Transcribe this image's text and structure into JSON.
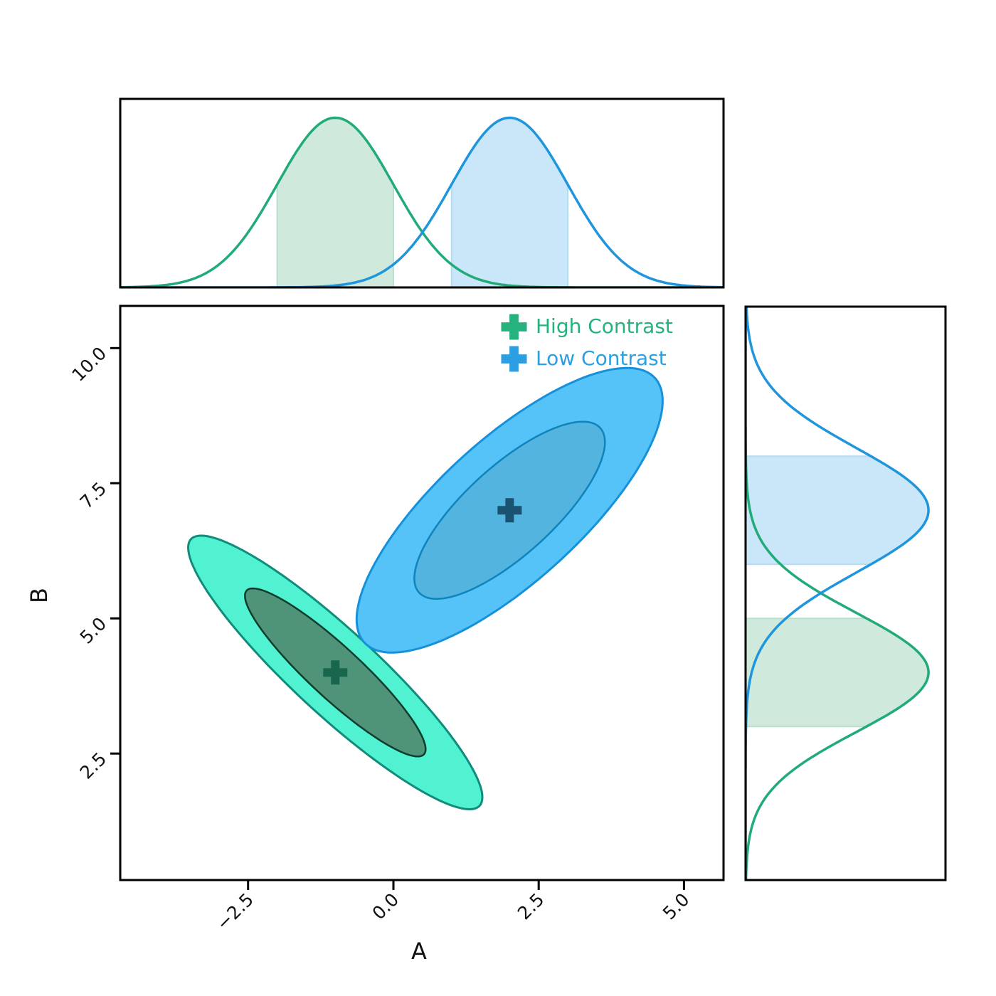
{
  "figure": {
    "background": "#ffffff",
    "spine_color": "#000000"
  },
  "axes": {
    "xlabel": "A",
    "ylabel": "B",
    "xlim": [
      -4.7,
      5.68
    ],
    "ylim": [
      0.16,
      10.78
    ],
    "x_ticks": [
      {
        "value": -2.5,
        "label": "−2.5"
      },
      {
        "value": 0.0,
        "label": "0.0"
      },
      {
        "value": 2.5,
        "label": "2.5"
      },
      {
        "value": 5.0,
        "label": "5.0"
      }
    ],
    "y_ticks": [
      {
        "value": 2.5,
        "label": "2.5"
      },
      {
        "value": 5.0,
        "label": "5.0"
      },
      {
        "value": 7.5,
        "label": "7.5"
      },
      {
        "value": 10.0,
        "label": "10.0"
      }
    ],
    "tick_rotation_deg": 45
  },
  "legend": {
    "items": [
      {
        "label": "High Contrast",
        "color": "#25B27D",
        "marker": "plus-icon"
      },
      {
        "label": "Low Contrast",
        "color": "#2B9FE1",
        "marker": "plus-icon"
      }
    ]
  },
  "chart_data": {
    "type": "area",
    "variant": "joint-kde-with-contour-ellipses-and-marginals",
    "title": "",
    "xlabel": "A",
    "ylabel": "B",
    "xlim": [
      -4.7,
      5.68
    ],
    "ylim": [
      0.16,
      10.78
    ],
    "legend_position": "upper right of main panel",
    "marginal_peak_fraction": {
      "top": 0.9,
      "right": 0.915
    },
    "groups": [
      {
        "name": "High Contrast",
        "center": {
          "A": -1.0,
          "B": 4.0
        },
        "marginal_A": {
          "mean": -1.0,
          "sd": 1.0,
          "shaded_interval": [
            -2.0,
            0.0
          ]
        },
        "marginal_B": {
          "mean": 4.0,
          "sd": 1.1,
          "shaded_interval": [
            3.0,
            5.0
          ]
        },
        "contours": {
          "outer": {
            "semi_major": 3.5,
            "semi_minor": 0.75,
            "angle_deg": 135
          },
          "inner": {
            "semi_major": 2.15,
            "semi_minor": 0.46,
            "angle_deg": 135
          }
        },
        "colors": {
          "curve": "#21AB78",
          "band_fill": "#CFEADC",
          "band_edge": "#B7E0CD",
          "outer_fill": "#50F2D2",
          "outer_edge": "#118C7C",
          "inner_fill": "#4F9478",
          "inner_edge": "#0C3D2C",
          "marker": "#17664D",
          "legend": "#25B27D"
        }
      },
      {
        "name": "Low Contrast",
        "center": {
          "A": 2.0,
          "B": 7.0
        },
        "marginal_A": {
          "mean": 2.0,
          "sd": 1.0,
          "shaded_interval": [
            1.0,
            3.0
          ]
        },
        "marginal_B": {
          "mean": 7.0,
          "sd": 1.15,
          "shaded_interval": [
            6.0,
            8.0
          ]
        },
        "contours": {
          "outer": {
            "semi_major": 3.5,
            "semi_minor": 1.27,
            "angle_deg": 45
          },
          "inner": {
            "semi_major": 2.18,
            "semi_minor": 0.79,
            "angle_deg": 45
          }
        },
        "colors": {
          "curve": "#1E95DC",
          "band_fill": "#C9E7F8",
          "band_edge": "#B4DAF0",
          "outer_fill": "#55C3F7",
          "outer_edge": "#1591DB",
          "inner_fill": "#52B4DF",
          "inner_edge": "#0F83BC",
          "marker": "#1A5272",
          "legend": "#2B9FE1"
        }
      }
    ]
  }
}
